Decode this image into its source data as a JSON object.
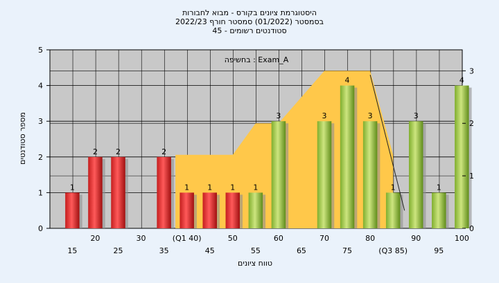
{
  "chart_data": {
    "type": "bar",
    "title_lines": [
      "היסטוגרמת ציונים בקורס - מבוא לחבורות",
      "בסמסטר  (01/2022)  סמסטר חורף 2022/23",
      "סטודנטים רשומים - 45"
    ],
    "annotation": "בחשיפה : Exam_A",
    "xlabel": "טווח ציונים",
    "ylabel": "מספר סטודנטים",
    "ylim": [
      0,
      5
    ],
    "y_ticks": [
      0,
      1,
      2,
      3,
      4,
      5
    ],
    "y2lim": [
      0,
      3.4
    ],
    "y2_ticks": [
      0,
      1,
      2,
      3
    ],
    "grid": true,
    "categories": [
      15,
      20,
      25,
      30,
      35,
      40,
      45,
      50,
      55,
      60,
      65,
      70,
      75,
      80,
      85,
      90,
      95,
      100
    ],
    "x_tick_labels": [
      "15",
      "20",
      "25",
      "30",
      "35",
      "(Q1 40)",
      "45",
      "50",
      "55",
      "60",
      "65",
      "70",
      "75",
      "80",
      "(Q3 85)",
      "90",
      "95",
      "100"
    ],
    "values": [
      1,
      2,
      2,
      0,
      2,
      1,
      1,
      1,
      1,
      3,
      0,
      3,
      4,
      3,
      1,
      3,
      1,
      4
    ],
    "bar_colors": [
      "red",
      "red",
      "red",
      "red",
      "red",
      "red",
      "red",
      "red",
      "green",
      "green",
      "green",
      "green",
      "green",
      "green",
      "green",
      "green",
      "green",
      "green"
    ],
    "area_series": {
      "x": [
        37.5,
        37.5,
        50,
        55,
        60,
        70,
        80,
        85,
        85
      ],
      "y": [
        0,
        1.4,
        1.4,
        2.0,
        2.0,
        3.0,
        3.0,
        1.4,
        0
      ]
    },
    "trend_line": {
      "x": [
        80,
        87.5
      ],
      "y": [
        4.3,
        0.5
      ]
    },
    "colors": {
      "plot_bg": "#c8c8c8",
      "page_bg": "#eaf2fb",
      "area": "#ffc84a",
      "red_top": "#f04848",
      "red_side": "#b01818",
      "green_top": "#b8d86a",
      "green_side": "#6a9a22"
    }
  }
}
